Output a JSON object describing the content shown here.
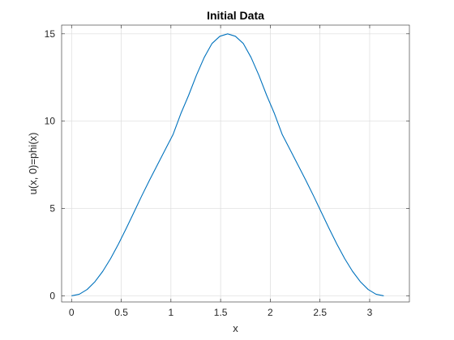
{
  "chart_data": {
    "type": "line",
    "title": "Initial Data",
    "xlabel": "x",
    "ylabel": "u(x, 0)=phi(x)",
    "xlim": [
      -0.1,
      3.4
    ],
    "ylim": [
      -0.35,
      15.5
    ],
    "xticks": [
      0,
      0.5,
      1,
      1.5,
      2,
      2.5,
      3
    ],
    "xtick_labels": [
      "0",
      "0.5",
      "1",
      "1.5",
      "2",
      "2.5",
      "3"
    ],
    "yticks": [
      0,
      5,
      10,
      15
    ],
    "ytick_labels": [
      "0",
      "5",
      "10",
      "15"
    ],
    "grid": true,
    "series": [
      {
        "color": "#0072BD",
        "x": [
          0,
          0.0785,
          0.1571,
          0.2356,
          0.3142,
          0.3927,
          0.4712,
          0.5498,
          0.6283,
          0.7069,
          0.7854,
          0.8639,
          0.9425,
          1.021,
          1.0996,
          1.1781,
          1.2566,
          1.3352,
          1.4137,
          1.4923,
          1.5708,
          1.6493,
          1.7279,
          1.8064,
          1.885,
          1.9635,
          2.042,
          2.1206,
          2.1991,
          2.2777,
          2.3562,
          2.4347,
          2.5133,
          2.5918,
          2.6704,
          2.7489,
          2.8274,
          2.906,
          2.9845,
          3.0631,
          3.1416
        ],
        "y": [
          0,
          0.092,
          0.366,
          0.81,
          1.406,
          2.13,
          2.958,
          3.856,
          4.79,
          5.73,
          6.63,
          7.5,
          8.37,
          9.23,
          10.43,
          11.48,
          12.63,
          13.65,
          14.45,
          14.86,
          15,
          14.86,
          14.45,
          13.65,
          12.63,
          11.48,
          10.43,
          9.23,
          8.37,
          7.5,
          6.63,
          5.73,
          4.79,
          3.856,
          2.958,
          2.13,
          1.406,
          0.81,
          0.366,
          0.092,
          0
        ]
      }
    ]
  }
}
